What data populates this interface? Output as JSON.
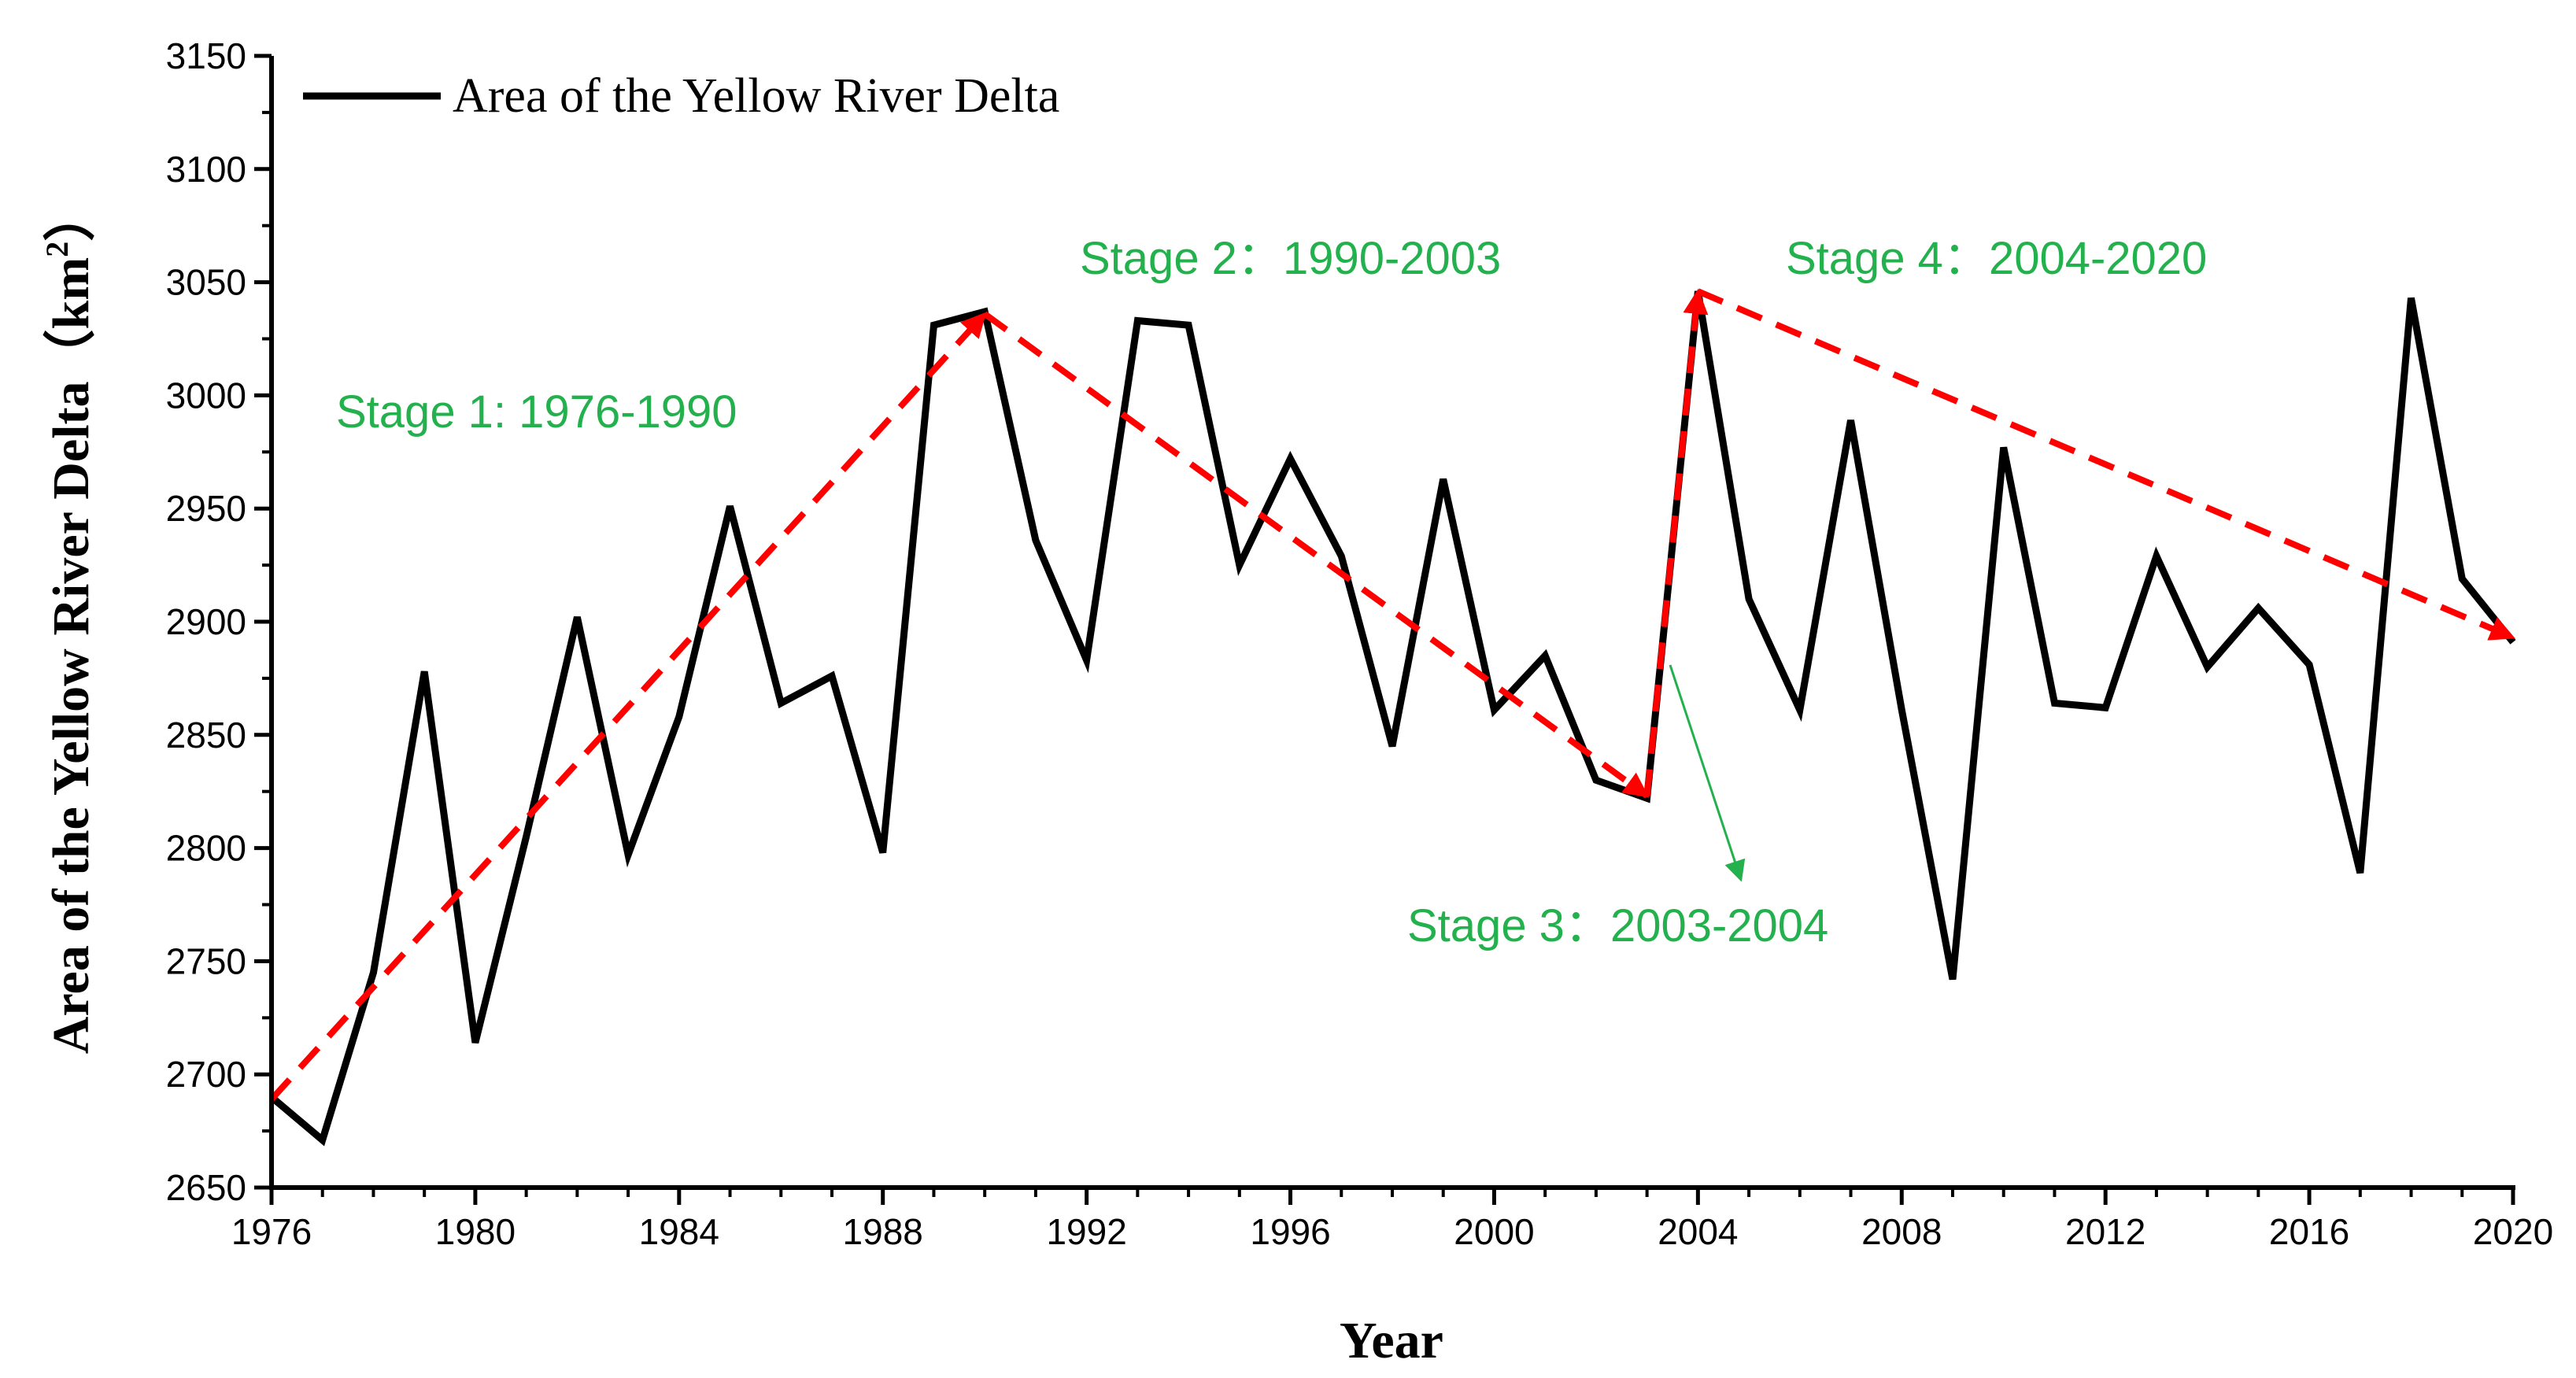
{
  "chart_data": {
    "type": "line",
    "xlabel": "Year",
    "ylabel": "Area of the Yellow River Delta（km",
    "ylabel_sup": "2",
    "ylabel_end": "）",
    "xlim": [
      1976,
      2020
    ],
    "ylim": [
      2650,
      3150
    ],
    "xticks": [
      1976,
      1980,
      1984,
      1988,
      1992,
      1996,
      2000,
      2004,
      2008,
      2012,
      2016,
      2020
    ],
    "yticks": [
      2650,
      2700,
      2750,
      2800,
      2850,
      2900,
      2950,
      3000,
      3050,
      3100,
      3150
    ],
    "x_minor_step": 1,
    "y_minor_step": 25,
    "legend": "Area of the Yellow River Delta",
    "series": [
      {
        "name": "Area of the Yellow River Delta",
        "color": "#000000",
        "x": [
          1976,
          1977,
          1978,
          1979,
          1980,
          1981,
          1982,
          1983,
          1984,
          1985,
          1986,
          1987,
          1988,
          1989,
          1990,
          1991,
          1992,
          1993,
          1994,
          1995,
          1996,
          1997,
          1998,
          1999,
          2000,
          2001,
          2002,
          2003,
          2004,
          2005,
          2006,
          2007,
          2008,
          2009,
          2010,
          2011,
          2012,
          2013,
          2014,
          2015,
          2016,
          2017,
          2018,
          2019,
          2020
        ],
        "values": [
          2690,
          2671,
          2745,
          2878,
          2714,
          2805,
          2902,
          2797,
          2858,
          2951,
          2864,
          2876,
          2798,
          3031,
          3037,
          2936,
          2883,
          3033,
          3031,
          2925,
          2972,
          2929,
          2845,
          2963,
          2861,
          2885,
          2830,
          2822,
          3046,
          2910,
          2861,
          2989,
          2861,
          2742,
          2977,
          2864,
          2862,
          2929,
          2880,
          2906,
          2881,
          2789,
          3043,
          2919,
          2891
        ]
      }
    ],
    "trends": [
      {
        "name": "stage-1-trend",
        "from": [
          1976,
          2689
        ],
        "to": [
          1990,
          3036
        ]
      },
      {
        "name": "stage-2-trend",
        "from": [
          1990,
          3036
        ],
        "to": [
          2003,
          2823
        ]
      },
      {
        "name": "stage-3-trend",
        "from": [
          2003,
          2823
        ],
        "to": [
          2004,
          3046
        ]
      },
      {
        "name": "stage-4-trend",
        "from": [
          2004,
          3046
        ],
        "to": [
          2020,
          2893
        ]
      }
    ],
    "trend_color": "#ff0000",
    "annotation_color": "#22b14c",
    "annotations": [
      {
        "name": "stage-1-label",
        "text": "Stage 1: 1976-1990"
      },
      {
        "name": "stage-2-label",
        "text": "Stage 2：1990-2003"
      },
      {
        "name": "stage-3-label",
        "text": "Stage 3：2003-2004"
      },
      {
        "name": "stage-4-label",
        "text": "Stage 4：2004-2020"
      }
    ]
  }
}
